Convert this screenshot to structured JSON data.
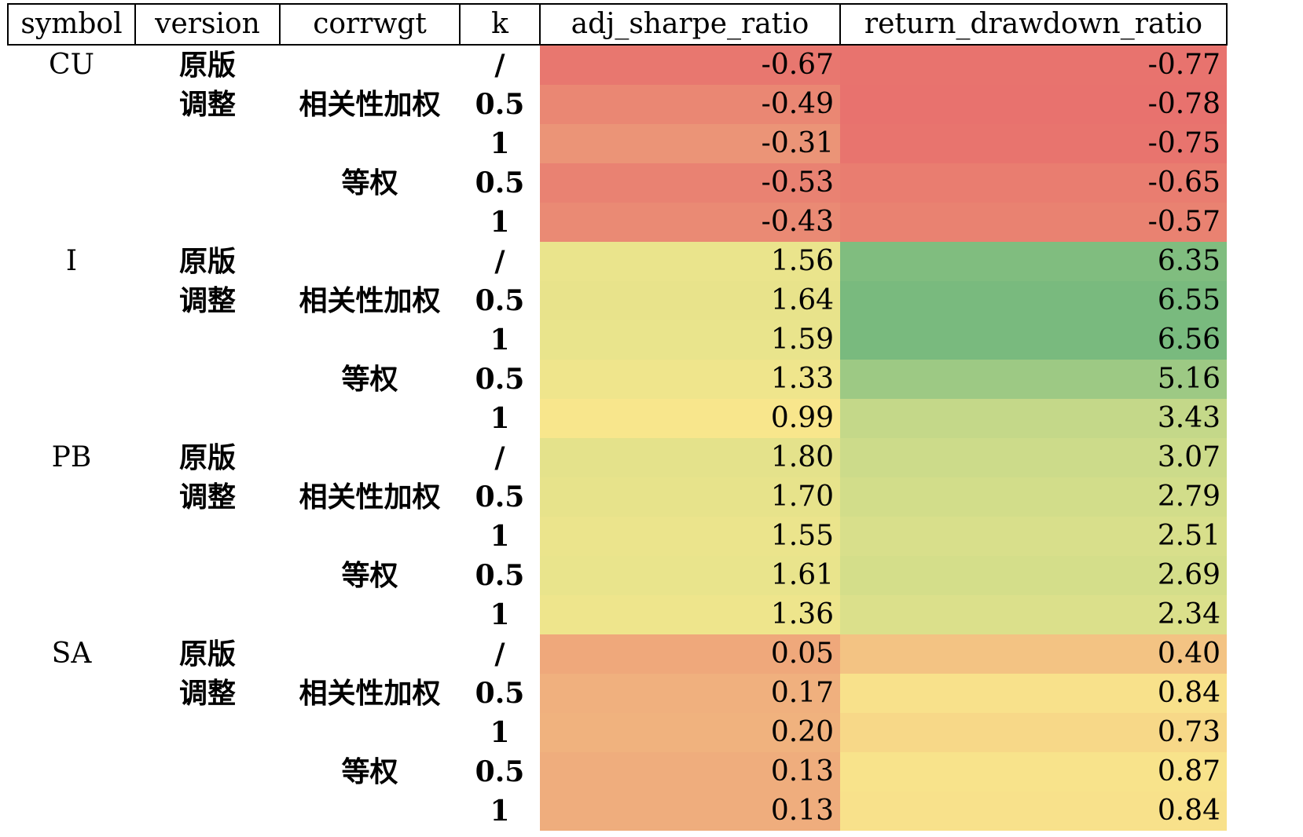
{
  "headers": [
    "symbol",
    "version",
    "corrwgt",
    "k",
    "adj_sharpe_ratio",
    "return_drawdown_ratio"
  ],
  "labels": {
    "orig": "原版",
    "adj": "调整",
    "corr": "相关性加权",
    "equal": "等权",
    "k_none": "/",
    "k_half": "0.5",
    "k_one": "1"
  },
  "colors": {
    "red": "#e8736e",
    "orange": "#f0b07e",
    "yellow": "#f8e68c",
    "green": "#7dbd80"
  },
  "groups": [
    {
      "symbol": "CU",
      "rows": [
        {
          "version": "原版",
          "corrwgt": "",
          "k": "/",
          "adj_sharpe_ratio": "-0.67",
          "return_drawdown_ratio": "-0.77",
          "bg1": "#e8776f",
          "bg2": "#e8736e"
        },
        {
          "version": "调整",
          "corrwgt": "相关性加权",
          "k": "0.5",
          "adj_sharpe_ratio": "-0.49",
          "return_drawdown_ratio": "-0.78",
          "bg1": "#ea8773",
          "bg2": "#e8726e"
        },
        {
          "version": "",
          "corrwgt": "",
          "k": "1",
          "adj_sharpe_ratio": "-0.31",
          "return_drawdown_ratio": "-0.75",
          "bg1": "#eb9477",
          "bg2": "#e8746e"
        },
        {
          "version": "",
          "corrwgt": "等权",
          "k": "0.5",
          "adj_sharpe_ratio": "-0.53",
          "return_drawdown_ratio": "-0.65",
          "bg1": "#e98272",
          "bg2": "#e97d70"
        },
        {
          "version": "",
          "corrwgt": "",
          "k": "1",
          "adj_sharpe_ratio": "-0.43",
          "return_drawdown_ratio": "-0.57",
          "bg1": "#ea8a74",
          "bg2": "#e98271"
        }
      ]
    },
    {
      "symbol": "I",
      "rows": [
        {
          "version": "原版",
          "corrwgt": "",
          "k": "/",
          "adj_sharpe_ratio": "1.56",
          "return_drawdown_ratio": "6.35",
          "bg1": "#eae48c",
          "bg2": "#80bd7f"
        },
        {
          "version": "调整",
          "corrwgt": "相关性加权",
          "k": "0.5",
          "adj_sharpe_ratio": "1.64",
          "return_drawdown_ratio": "6.55",
          "bg1": "#e8e38b",
          "bg2": "#79ba7e"
        },
        {
          "version": "",
          "corrwgt": "",
          "k": "1",
          "adj_sharpe_ratio": "1.59",
          "return_drawdown_ratio": "6.56",
          "bg1": "#e9e48c",
          "bg2": "#79ba7e"
        },
        {
          "version": "",
          "corrwgt": "等权",
          "k": "0.5",
          "adj_sharpe_ratio": "1.33",
          "return_drawdown_ratio": "5.16",
          "bg1": "#efe58c",
          "bg2": "#9dc984"
        },
        {
          "version": "",
          "corrwgt": "",
          "k": "1",
          "adj_sharpe_ratio": "0.99",
          "return_drawdown_ratio": "3.43",
          "bg1": "#f8e68c",
          "bg2": "#c4d889"
        }
      ]
    },
    {
      "symbol": "PB",
      "rows": [
        {
          "version": "原版",
          "corrwgt": "",
          "k": "/",
          "adj_sharpe_ratio": "1.80",
          "return_drawdown_ratio": "3.07",
          "bg1": "#e4e28b",
          "bg2": "#ccdb8a"
        },
        {
          "version": "调整",
          "corrwgt": "相关性加权",
          "k": "0.5",
          "adj_sharpe_ratio": "1.70",
          "return_drawdown_ratio": "2.79",
          "bg1": "#e7e38b",
          "bg2": "#d2dd8a"
        },
        {
          "version": "",
          "corrwgt": "",
          "k": "1",
          "adj_sharpe_ratio": "1.55",
          "return_drawdown_ratio": "2.51",
          "bg1": "#ebe48c",
          "bg2": "#d8df8b"
        },
        {
          "version": "",
          "corrwgt": "等权",
          "k": "0.5",
          "adj_sharpe_ratio": "1.61",
          "return_drawdown_ratio": "2.69",
          "bg1": "#e9e48c",
          "bg2": "#d4de8a"
        },
        {
          "version": "",
          "corrwgt": "",
          "k": "1",
          "adj_sharpe_ratio": "1.36",
          "return_drawdown_ratio": "2.34",
          "bg1": "#eee58c",
          "bg2": "#dbe08b"
        }
      ]
    },
    {
      "symbol": "SA",
      "rows": [
        {
          "version": "原版",
          "corrwgt": "",
          "k": "/",
          "adj_sharpe_ratio": "0.05",
          "return_drawdown_ratio": "0.40",
          "bg1": "#efa87b",
          "bg2": "#f3c383"
        },
        {
          "version": "调整",
          "corrwgt": "相关性加权",
          "k": "0.5",
          "adj_sharpe_ratio": "0.17",
          "return_drawdown_ratio": "0.84",
          "bg1": "#f0b07e",
          "bg2": "#f8e18b"
        },
        {
          "version": "",
          "corrwgt": "",
          "k": "1",
          "adj_sharpe_ratio": "0.20",
          "return_drawdown_ratio": "0.73",
          "bg1": "#f0b27e",
          "bg2": "#f7d888"
        },
        {
          "version": "",
          "corrwgt": "等权",
          "k": "0.5",
          "adj_sharpe_ratio": "0.13",
          "return_drawdown_ratio": "0.87",
          "bg1": "#efad7d",
          "bg2": "#f8e38b"
        },
        {
          "version": "",
          "corrwgt": "",
          "k": "1",
          "adj_sharpe_ratio": "0.13",
          "return_drawdown_ratio": "0.84",
          "bg1": "#efad7d",
          "bg2": "#f8e18b"
        }
      ]
    }
  ]
}
